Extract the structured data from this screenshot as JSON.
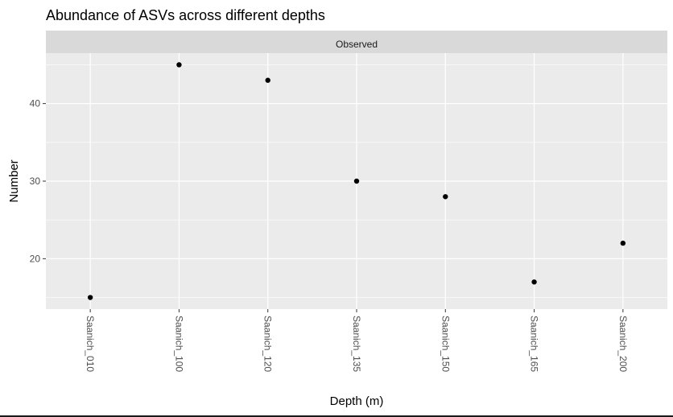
{
  "chart_data": {
    "type": "scatter",
    "title": "Abundance of ASVs across different depths",
    "facet_label": "Observed",
    "xlabel": "Depth (m)",
    "ylabel": "Number",
    "categories": [
      "Saanich_010",
      "Saanich_100",
      "Saanich_120",
      "Saanich_135",
      "Saanich_150",
      "Saanich_165",
      "Saanich_200"
    ],
    "values": [
      15,
      45,
      43,
      30,
      28,
      17,
      22
    ],
    "ylim": [
      13.5,
      46.5
    ],
    "yticks": [
      20,
      30,
      40
    ],
    "grid": true,
    "x_tick_rotation": "rotated 90° clockwise",
    "colors": {
      "panel_bg": "#ebebeb",
      "strip_bg": "#d9d9d9",
      "grid": "#ffffff",
      "point": "#000000"
    }
  }
}
